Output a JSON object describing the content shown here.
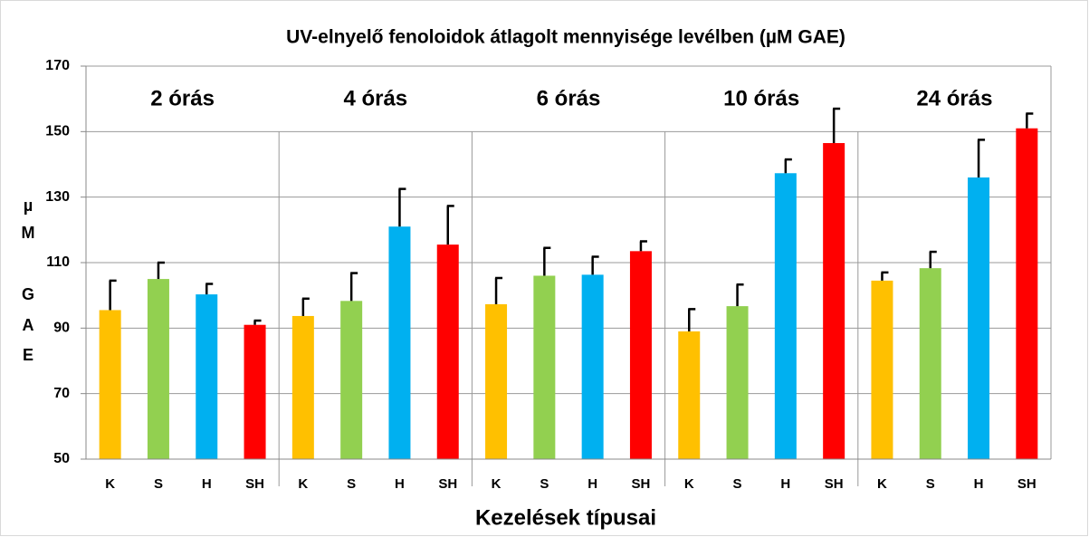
{
  "chart_data": {
    "type": "bar",
    "title": "UV-elnyelő fenoloidok átlagolt mennyisége levélben  (µM GAE)",
    "xlabel": "Kezelések típusai",
    "ylabel_lines": [
      "µ",
      "M",
      "G",
      "A",
      "E"
    ],
    "group_labels": [
      "2 órás",
      "4 órás",
      "6 órás",
      "10 órás",
      "24 órás"
    ],
    "categories": [
      "K",
      "S",
      "H",
      "SH",
      "K",
      "S",
      "H",
      "SH",
      "K",
      "S",
      "H",
      "SH",
      "K",
      "S",
      "H",
      "SH",
      "K",
      "S",
      "H",
      "SH"
    ],
    "values": [
      95.5,
      105,
      100.3,
      91,
      93.7,
      98.3,
      121,
      115.5,
      97.3,
      106,
      106.3,
      113.5,
      89,
      96.7,
      137.3,
      146.5,
      104.5,
      108.3,
      136,
      151
    ],
    "errors": [
      9,
      5,
      3.2,
      1.3,
      5.3,
      8.5,
      11.5,
      11.8,
      8,
      8.5,
      5.5,
      3,
      6.8,
      6.6,
      4.2,
      10.5,
      2.5,
      5,
      11.5,
      4.5
    ],
    "colors": [
      "#ffc000",
      "#92d050",
      "#00b0f0",
      "#ff0000"
    ],
    "ylim": [
      50,
      170
    ],
    "yticks": [
      50,
      70,
      90,
      110,
      130,
      150,
      170
    ],
    "grid": true
  }
}
